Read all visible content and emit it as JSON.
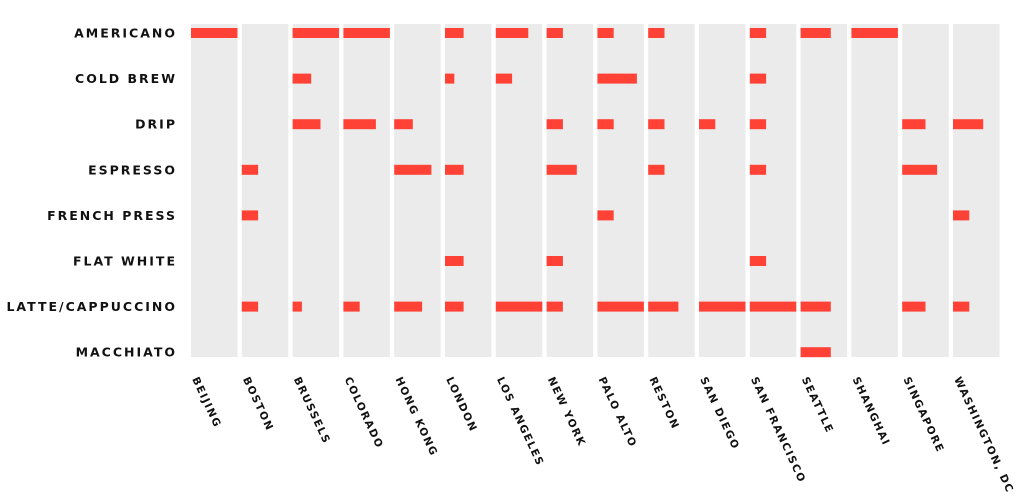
{
  "chart_data": {
    "type": "heatmap",
    "title": "",
    "xlabel": "",
    "ylabel": "",
    "drinks": [
      "AMERICANO",
      "COLD BREW",
      "DRIP",
      "ESPRESSO",
      "FRENCH PRESS",
      "FLAT WHITE",
      "LATTE/CAPPUCCINO",
      "MACCHIATO"
    ],
    "cities": [
      "BEIJING",
      "BOSTON",
      "BRUSSELS",
      "COLORADO",
      "HONG KONG",
      "LONDON",
      "LOS ANGELES",
      "NEW YORK",
      "PALO ALTO",
      "RESTON",
      "SAN DIEGO",
      "SAN FRANCISCO",
      "SEATTLE",
      "SHANGHAI",
      "SINGAPORE",
      "WASHINGTON, DC"
    ],
    "value_range": [
      0,
      1
    ],
    "values": [
      [
        1.0,
        0,
        1.0,
        1.0,
        0,
        0.4,
        0.7,
        0.35,
        0.35,
        0.35,
        0,
        0.35,
        0.65,
        1.0,
        0,
        0
      ],
      [
        0,
        0,
        0.4,
        0,
        0,
        0.2,
        0.35,
        0,
        0.85,
        0,
        0,
        0.35,
        0,
        0,
        0,
        0
      ],
      [
        0,
        0,
        0.6,
        0.7,
        0.4,
        0,
        0,
        0.35,
        0.35,
        0.35,
        0.35,
        0.35,
        0,
        0,
        0.5,
        0.65
      ],
      [
        0,
        0.35,
        0,
        0,
        0.8,
        0.4,
        0,
        0.65,
        0,
        0.35,
        0,
        0.35,
        0,
        0,
        0.75,
        0
      ],
      [
        0,
        0.35,
        0,
        0,
        0,
        0,
        0,
        0,
        0.35,
        0,
        0,
        0,
        0,
        0,
        0,
        0.35
      ],
      [
        0,
        0,
        0,
        0,
        0,
        0.4,
        0,
        0.35,
        0,
        0,
        0,
        0.35,
        0,
        0,
        0,
        0
      ],
      [
        0,
        0.35,
        0.2,
        0.35,
        0.6,
        0.4,
        1.0,
        0.35,
        1.0,
        0.65,
        1.0,
        1.0,
        0.65,
        0,
        0.5,
        0.35
      ],
      [
        0,
        0,
        0,
        0,
        0,
        0,
        0,
        0,
        0,
        0,
        0,
        0,
        0.65,
        0,
        0,
        0
      ]
    ],
    "colors": {
      "column": "#ebebeb",
      "bar": "#ff4136",
      "text": "#111111"
    }
  }
}
